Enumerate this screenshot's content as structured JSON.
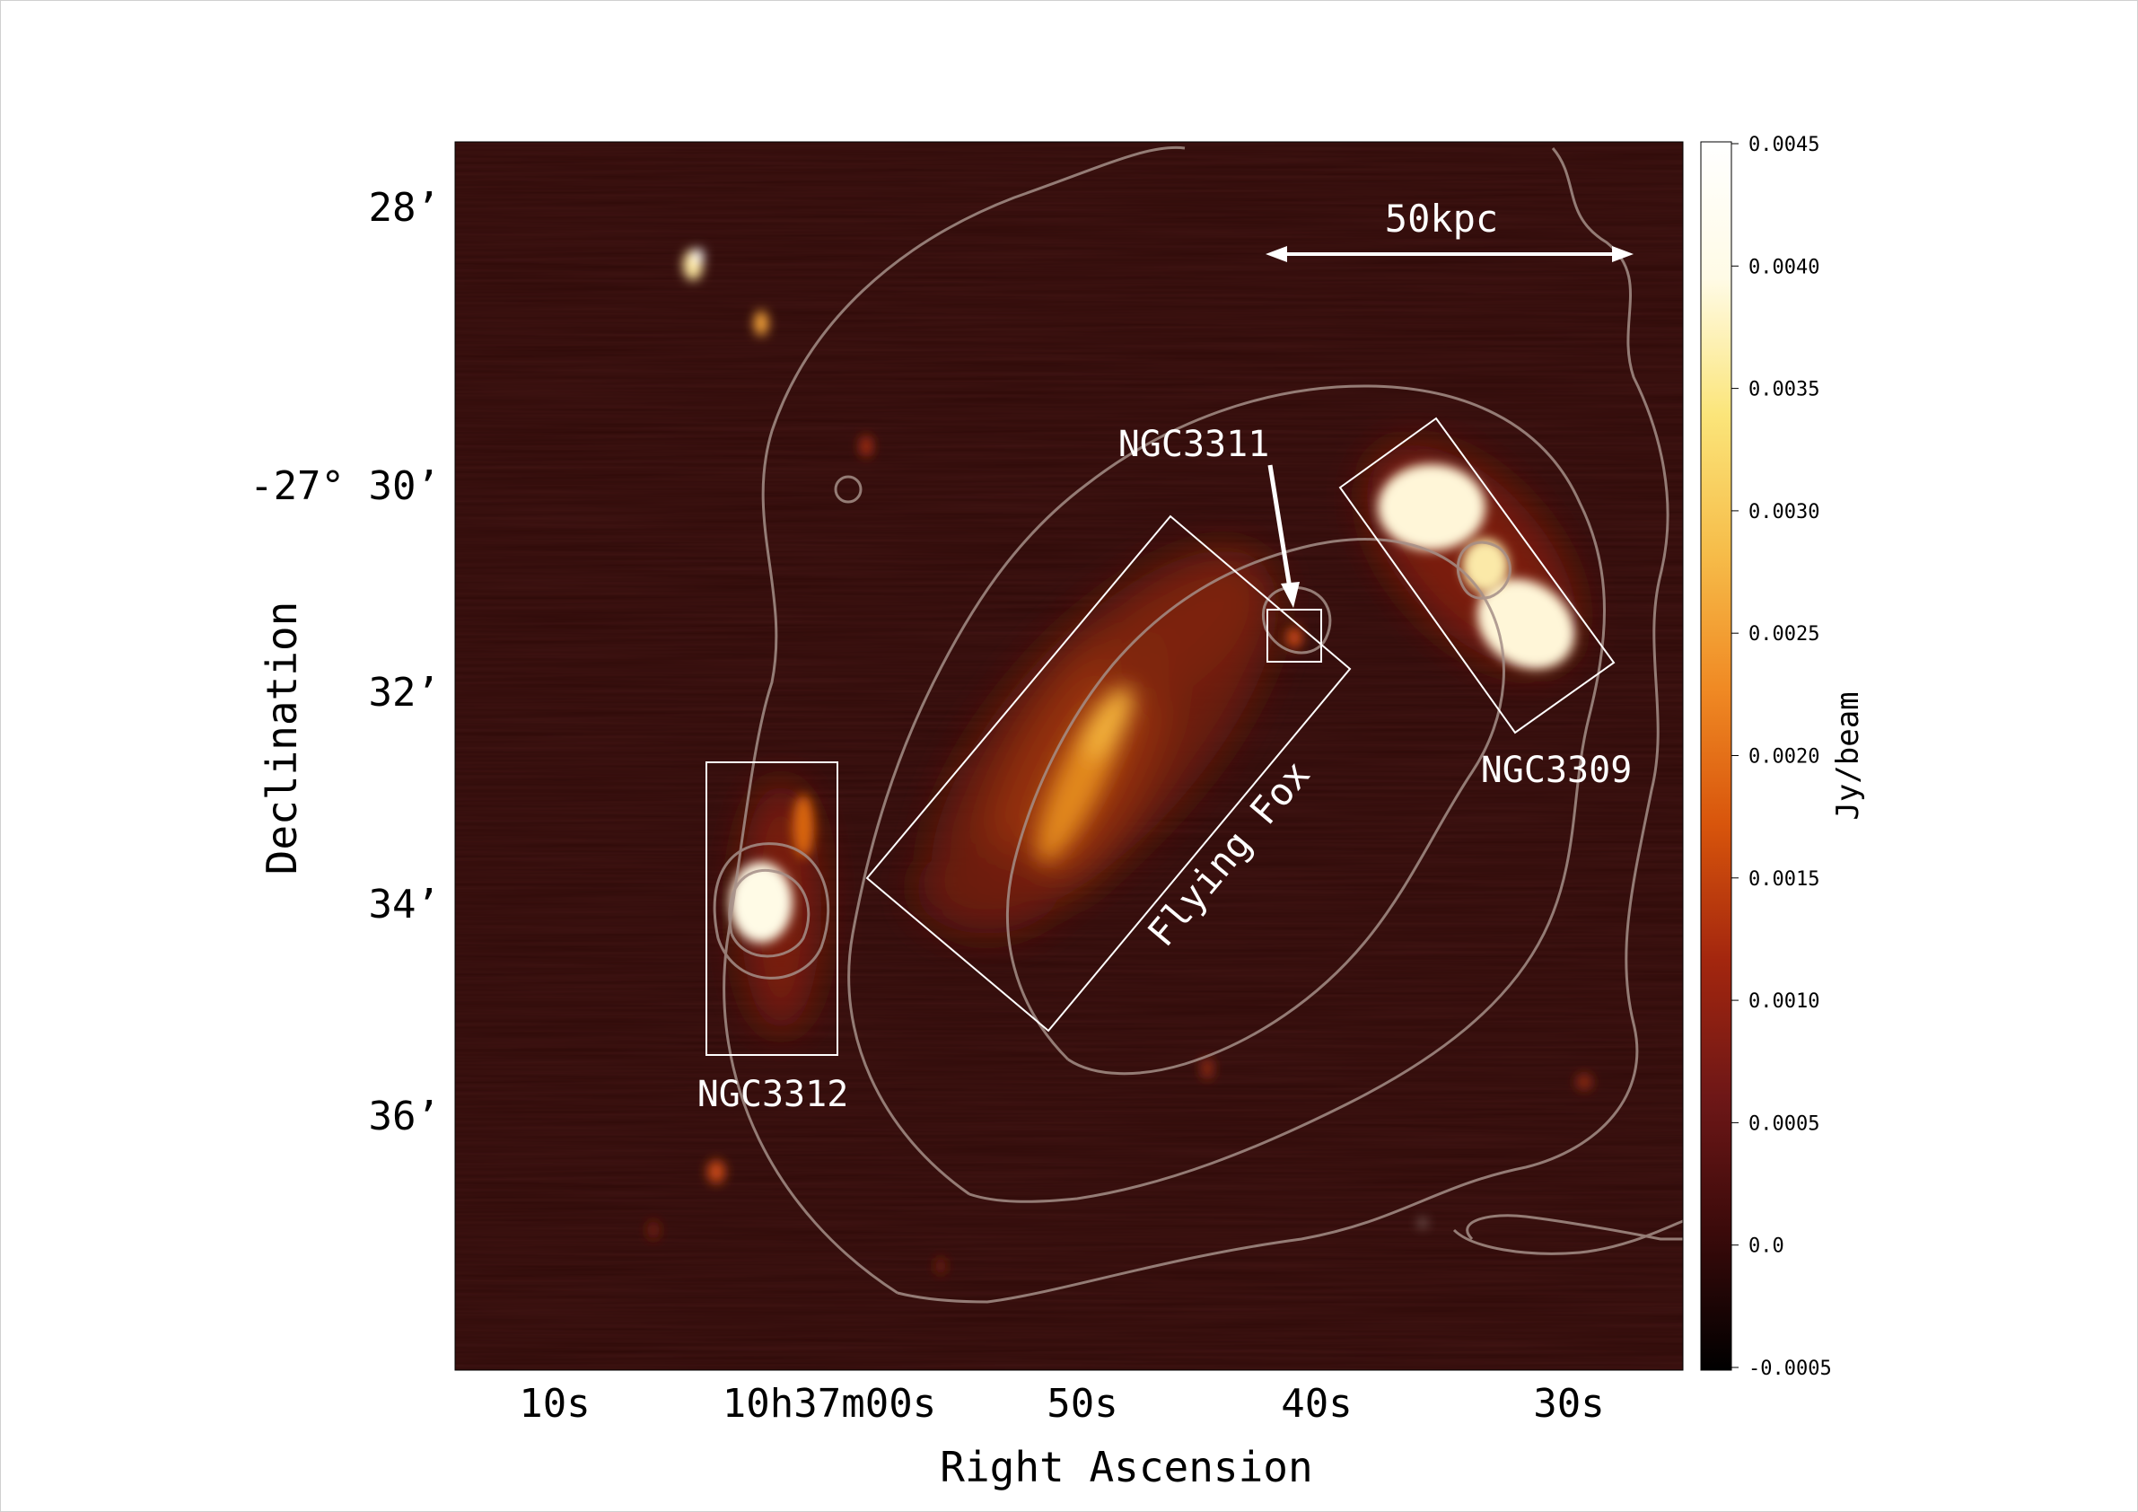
{
  "figure": {
    "xlabel": "Right Ascension",
    "ylabel": "Declination",
    "x_ticks": [
      "10s",
      "10h37m00s",
      "50s",
      "40s",
      "30s"
    ],
    "y_ticks": [
      "28’",
      "-27° 30’",
      "32’",
      "34’",
      "36’"
    ],
    "scale_bar_label": "50kpc",
    "labels": {
      "ngc3311": "NGC3311",
      "ngc3309": "NGC3309",
      "ngc3312": "NGC3312",
      "flying_fox": "Flying Fox"
    },
    "colorbar": {
      "label": "Jy/beam",
      "ticks": [
        "0.0045",
        "0.0040",
        "0.0035",
        "0.0030",
        "0.0025",
        "0.0020",
        "0.0015",
        "0.0010",
        "0.0005",
        "0.0",
        "-0.0005"
      ],
      "colormap": [
        "#000000",
        "#3a0a0a",
        "#6e1717",
        "#a3260e",
        "#d8550c",
        "#f08a24",
        "#f6bd4a",
        "#fbe57a",
        "#fffbe6",
        "#ffffff"
      ]
    },
    "colors": {
      "background": "#2e0a08",
      "contour": "#a58f88",
      "annotation": "#ffffff"
    }
  }
}
